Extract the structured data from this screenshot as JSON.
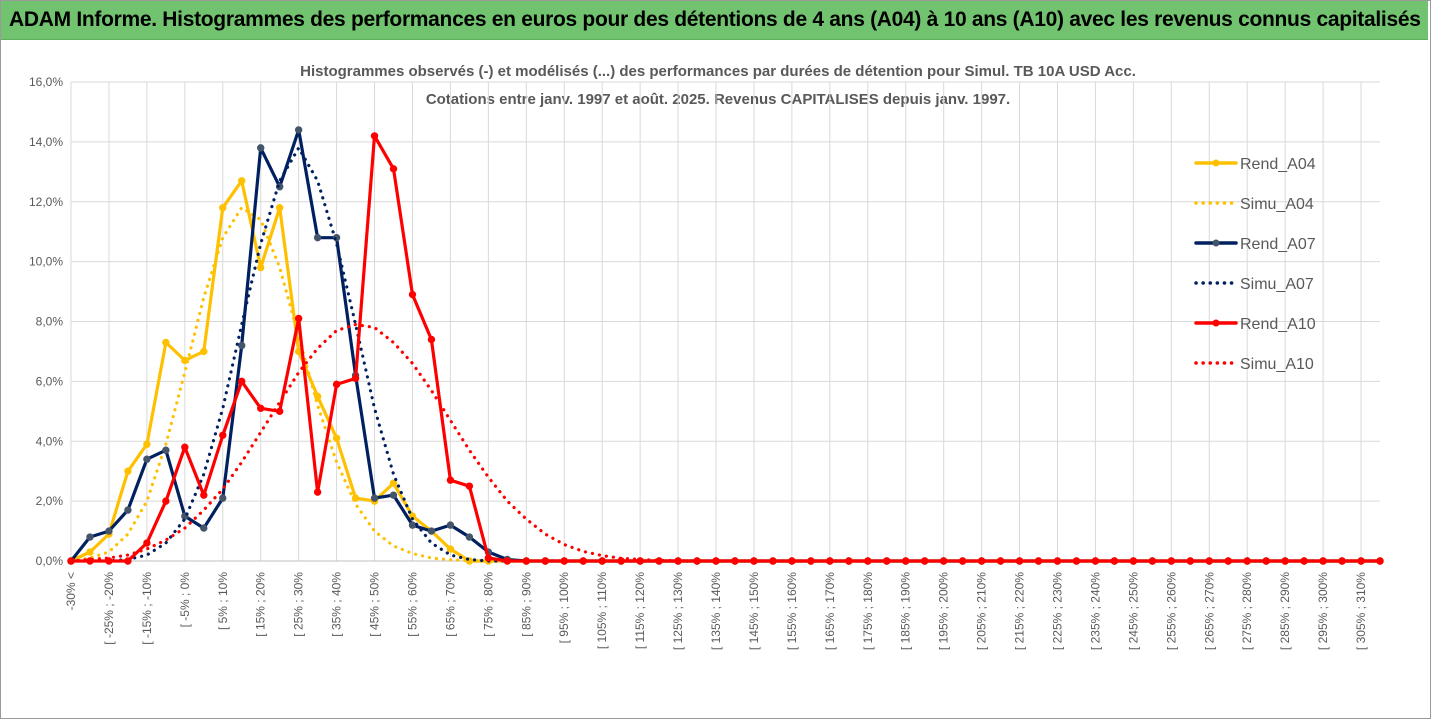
{
  "header": {
    "title": "ADAM Informe. Histogrammes des performances en euros pour des détentions de 4 ans (A04) à 10 ans (A10) avec les revenus connus capitalisés"
  },
  "colors": {
    "banner": "#72c36f",
    "A04": "#ffc000",
    "A07": "#002060",
    "A10": "#ff0000",
    "grid": "#d9d9d9",
    "text": "#595959"
  },
  "chart_data": {
    "type": "line",
    "title_line1": "Histogrammes observés (-) et modélisés (...) des performances par durées de détention pour Simul. TB 10A USD Acc.",
    "title_line2": "Cotations entre janv. 1997 et août. 2025. Revenus CAPITALISES depuis janv. 1997.",
    "ylim": [
      0,
      16
    ],
    "yticks": [
      "0,0%",
      "2,0%",
      "4,0%",
      "6,0%",
      "8,0%",
      "10,0%",
      "12,0%",
      "14,0%",
      "16,0%"
    ],
    "x_labels": [
      "-30% <",
      "[ -25% ; -20%",
      "[ -15% ; -10%",
      "[ -5% ; 0%",
      "[ 5% ; 10%",
      "[ 15% ; 20%",
      "[ 25% ; 30%",
      "[ 35% ; 40%",
      "[ 45% ; 50%",
      "[ 55% ; 60%",
      "[ 65% ; 70%",
      "[ 75% ; 80%",
      "[ 85% ; 90%",
      "[ 95% ; 100%",
      "[ 105% ; 110%",
      "[ 115% ; 120%",
      "[ 125% ; 130%",
      "[ 135% ; 140%",
      "[ 145% ; 150%",
      "[ 155% ; 160%",
      "[ 165% ; 170%",
      "[ 175% ; 180%",
      "[ 185% ; 190%",
      "[ 195% ; 200%",
      "[ 205% ; 210%",
      "[ 215% ; 220%",
      "[ 225% ; 230%",
      "[ 235% ; 240%",
      "[ 245% ; 250%",
      "[ 255% ; 260%",
      "[ 265% ; 270%",
      "[ 275% ; 280%",
      "[ 285% ; 290%",
      "[ 295% ; 300%",
      "[ 305% ; 310%"
    ],
    "n_bins": 70,
    "legend_position": "right",
    "grid": true,
    "series": [
      {
        "name": "Rend_A04",
        "style": "solid",
        "color": "#ffc000",
        "markers": true,
        "values": [
          0,
          0.3,
          0.9,
          3.0,
          3.9,
          7.3,
          6.7,
          7.0,
          11.8,
          12.7,
          9.8,
          11.8,
          7.0,
          5.5,
          4.1,
          2.1,
          2.0,
          2.6,
          1.5,
          1.0,
          0.4,
          0.0,
          0.0
        ]
      },
      {
        "name": "Simu_A04",
        "style": "dotted",
        "color": "#ffc000",
        "markers": false,
        "values": [
          0,
          0.1,
          0.3,
          0.9,
          2.0,
          3.9,
          6.3,
          8.8,
          10.8,
          11.8,
          11.4,
          9.8,
          7.5,
          5.2,
          3.3,
          1.9,
          1.0,
          0.5,
          0.25,
          0.1,
          0.04,
          0.01,
          0
        ]
      },
      {
        "name": "Rend_A07",
        "style": "solid",
        "color": "#002060",
        "markers": true,
        "values": [
          0,
          0.8,
          1.0,
          1.7,
          3.4,
          3.7,
          1.5,
          1.1,
          2.1,
          7.2,
          13.8,
          12.5,
          14.4,
          10.8,
          10.8,
          6.2,
          2.1,
          2.2,
          1.2,
          1.0,
          1.2,
          0.8,
          0.3,
          0.05
        ]
      },
      {
        "name": "Simu_A07",
        "style": "dotted",
        "color": "#002060",
        "markers": false,
        "values": [
          0,
          0,
          0,
          0.05,
          0.2,
          0.6,
          1.4,
          2.9,
          5.1,
          7.9,
          10.6,
          12.7,
          13.8,
          12.7,
          10.6,
          7.9,
          5.1,
          2.9,
          1.4,
          0.6,
          0.2,
          0.05,
          0,
          0
        ]
      },
      {
        "name": "Rend_A10",
        "style": "solid",
        "color": "#ff0000",
        "markers": true,
        "values": [
          0,
          0,
          0,
          0,
          0.6,
          2.0,
          3.8,
          2.2,
          4.2,
          6.0,
          5.1,
          5.0,
          8.1,
          2.3,
          5.9,
          6.1,
          14.2,
          13.1,
          8.9,
          7.4,
          2.7,
          2.5,
          0.1
        ]
      },
      {
        "name": "Simu_A10",
        "style": "dotted",
        "color": "#ff0000",
        "markers": false,
        "values": [
          0,
          0.05,
          0.1,
          0.2,
          0.4,
          0.7,
          1.1,
          1.7,
          2.4,
          3.3,
          4.3,
          5.3,
          6.3,
          7.1,
          7.7,
          7.9,
          7.8,
          7.3,
          6.6,
          5.7,
          4.7,
          3.7,
          2.8,
          2.0,
          1.4,
          0.9,
          0.55,
          0.32,
          0.18,
          0.09,
          0.05,
          0.02,
          0.01,
          0
        ]
      }
    ]
  }
}
